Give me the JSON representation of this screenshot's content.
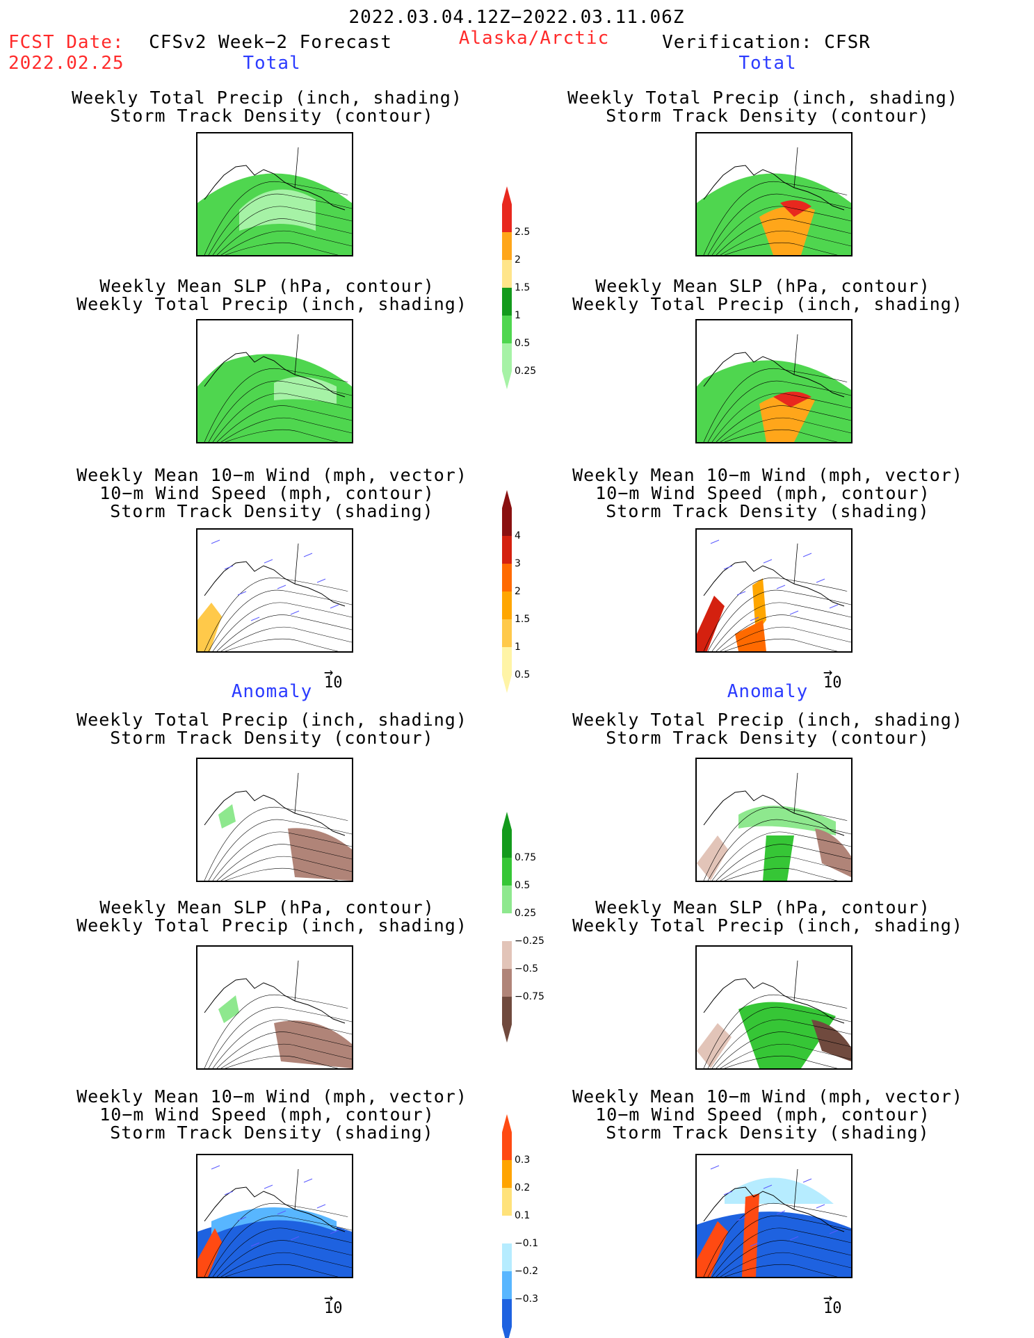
{
  "header": {
    "date_range": "2022.03.04.12Z−2022.03.11.06Z",
    "fcst_label": "FCST Date:",
    "fcst_date": "2022.02.25",
    "model_title": "CFSv2 Week−2 Forecast",
    "region": "Alaska/Arctic",
    "verification": "Verification: CFSR"
  },
  "sections": {
    "total": "Total",
    "anomaly": "Anomaly"
  },
  "titles": {
    "precip_storm": [
      "Weekly Total Precip (inch, shading)",
      "Storm Track Density (contour)"
    ],
    "slp_precip": [
      "Weekly Mean SLP (hPa, contour)",
      "Weekly Total Precip (inch, shading)"
    ],
    "wind_storm": [
      "Weekly Mean 10−m Wind (mph, vector)",
      "10−m Wind Speed (mph, contour)",
      "Storm Track Density (shading)"
    ]
  },
  "vector_key": "10",
  "colorbars": [
    {
      "name": "total-precip",
      "labels": [
        "2.5",
        "2",
        "1.5",
        "1",
        "0.5",
        "0.25"
      ],
      "colors": [
        "#e8281e",
        "#ffa61a",
        "#ffe58a",
        "#139a1c",
        "#4fd64f",
        "#a6f2a6"
      ]
    },
    {
      "name": "total-storm-density",
      "labels": [
        "4",
        "3",
        "2",
        "1.5",
        "1",
        "0.5"
      ],
      "colors": [
        "#8a1010",
        "#d4210f",
        "#ff6a00",
        "#ffa600",
        "#ffc94a",
        "#fff4a6"
      ]
    },
    {
      "name": "anomaly-precip",
      "labels": [
        "0.75",
        "0.5",
        "0.25",
        "−0.25",
        "−0.5",
        "−0.75"
      ],
      "colors": [
        "#139a1c",
        "#36c636",
        "#8ee88e",
        "#ffffff",
        "#e2c4b8",
        "#b08478",
        "#704a3e"
      ]
    },
    {
      "name": "anomaly-storm-density",
      "labels": [
        "0.3",
        "0.2",
        "0.1",
        "−0.1",
        "−0.2",
        "−0.3"
      ],
      "colors": [
        "#ff4a12",
        "#ffa400",
        "#ffe27a",
        "#ffffff",
        "#b6ecff",
        "#58b6ff",
        "#1e62e0"
      ]
    }
  ]
}
